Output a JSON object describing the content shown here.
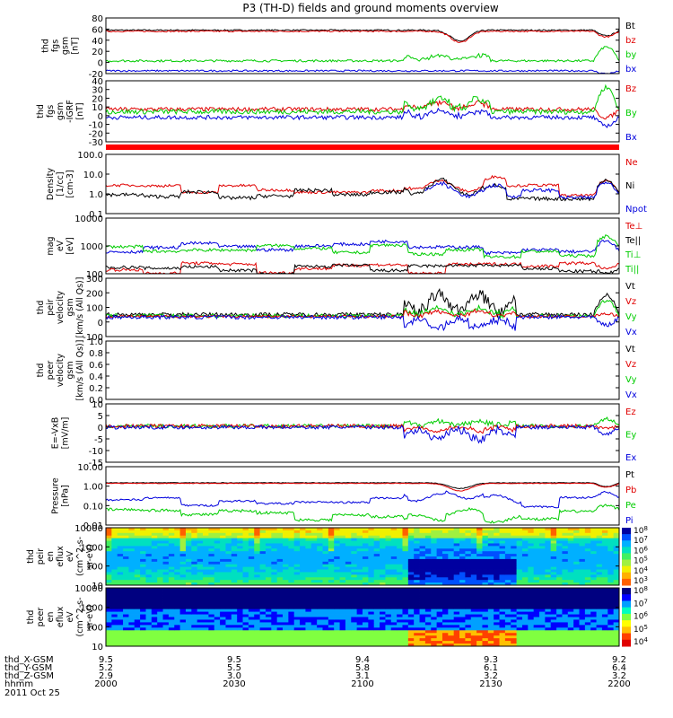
{
  "title": "P3 (TH-D) fields and ground moments overview",
  "colors": {
    "black": "#000000",
    "red": "#e00000",
    "green": "#00cc00",
    "blue": "#0000dd"
  },
  "chart_data": {
    "type": "line",
    "x_ticks": [
      "2000",
      "2030",
      "2100",
      "2130",
      "2200"
    ],
    "x_label": "hhmm",
    "date": "2011 Oct 25",
    "ephemeris": [
      {
        "label": "thd_X-GSM",
        "values": [
          "9.5",
          "9.5",
          "9.4",
          "9.3",
          "9.2"
        ]
      },
      {
        "label": "thd_Y-GSM",
        "values": [
          "5.2",
          "5.5",
          "5.8",
          "6.1",
          "6.4"
        ]
      },
      {
        "label": "thd_Z-GSM",
        "values": [
          "2.9",
          "3.0",
          "3.1",
          "3.2",
          "3.2"
        ]
      }
    ],
    "panels": [
      {
        "ylabel": [
          "thd",
          "fgs",
          "gsm",
          "[nT]"
        ],
        "y_ticks": [
          "80",
          "60",
          "40",
          "20",
          "0",
          "-20"
        ],
        "scale": "linear",
        "ylim": [
          -20,
          80
        ],
        "legend": [
          {
            "t": "Bt",
            "c": "black"
          },
          {
            "t": "bz",
            "c": "red"
          },
          {
            "t": "by",
            "c": "green"
          },
          {
            "t": "bx",
            "c": "blue"
          }
        ],
        "series": [
          {
            "color": "black",
            "base": 58,
            "noise": 1.2,
            "dip": {
              "at": 0.69,
              "w": 0.025,
              "amp": -20
            },
            "endfx": -10
          },
          {
            "color": "red",
            "base": 56,
            "noise": 1.2,
            "dip": {
              "at": 0.69,
              "w": 0.025,
              "amp": -20
            },
            "endfx": -10
          },
          {
            "color": "green",
            "base": 3,
            "noise": 2,
            "burst": {
              "from": 0.58,
              "to": 0.75,
              "amp": 10
            },
            "endfx": 25
          },
          {
            "color": "blue",
            "base": -15,
            "noise": 1.5,
            "endfx": -5
          }
        ]
      },
      {
        "ylabel": [
          "thd",
          "fgs",
          "gsm",
          "-IGRF",
          "[nT]"
        ],
        "y_ticks": [
          "40",
          "30",
          "20",
          "10",
          "0",
          "-10",
          "-20",
          "-30"
        ],
        "scale": "linear",
        "ylim": [
          -35,
          40
        ],
        "legend": [
          {
            "t": "Bz",
            "c": "red"
          },
          {
            "t": "By",
            "c": "green"
          },
          {
            "t": "Bx",
            "c": "blue"
          }
        ],
        "series": [
          {
            "color": "red",
            "base": 5,
            "noise": 2.5,
            "burst": {
              "from": 0.58,
              "to": 0.75,
              "amp": 8
            },
            "endfx": -10
          },
          {
            "color": "green",
            "base": 2,
            "noise": 3,
            "burst": {
              "from": 0.58,
              "to": 0.75,
              "amp": 15
            },
            "endfx": 30
          },
          {
            "color": "blue",
            "base": -5,
            "noise": 2.5,
            "burst": {
              "from": 0.58,
              "to": 0.75,
              "amp": 8
            },
            "endfx": -10
          }
        ]
      },
      {
        "ylabel": [
          "Density",
          "[1/cc]",
          "[cm-3]"
        ],
        "y_ticks": [
          "100.0",
          "10.0",
          "1.0",
          "0.1"
        ],
        "scale": "log",
        "ylim": [
          0.1,
          200
        ],
        "legend": [
          {
            "t": "Ne",
            "c": "red"
          },
          {
            "t": "Ni",
            "c": "black"
          },
          {
            "t": "Npot",
            "c": "blue"
          }
        ],
        "series": [
          {
            "color": "red",
            "base": 2.0,
            "noise": 0.15,
            "steps": true,
            "burst": {
              "from": 0.58,
              "to": 0.78,
              "amp": 0.5
            },
            "endfx": 0.6
          },
          {
            "color": "black",
            "base": 1.0,
            "noise": 0.2,
            "steps": true,
            "burst": {
              "from": 0.58,
              "to": 0.78,
              "amp": 0.8
            },
            "endfx": 0.8
          },
          {
            "color": "blue",
            "base": 1.2,
            "noise": 0.2,
            "steps": true,
            "from": 0.62,
            "burst": {
              "from": 0.58,
              "to": 0.78,
              "amp": 0.6
            },
            "endfx": 0.7
          }
        ]
      },
      {
        "ylabel": [
          "mag",
          "eV",
          "[eV]"
        ],
        "y_ticks": [
          "10000",
          "1000",
          "100"
        ],
        "scale": "log",
        "ylim": [
          40,
          20000
        ],
        "legend": [
          {
            "t": "Te⊥",
            "c": "red"
          },
          {
            "t": "Te||",
            "c": "black"
          },
          {
            "t": "Ti⊥",
            "c": "green"
          },
          {
            "t": "Ti||",
            "c": "green"
          }
        ],
        "series": [
          {
            "color": "blue",
            "base": 800,
            "noise": 0.15,
            "steps": true,
            "stepdir": 1,
            "endfx": 0.5
          },
          {
            "color": "green",
            "base": 500,
            "noise": 0.15,
            "steps": true,
            "stepdir": 1,
            "endfx": 0.5
          },
          {
            "color": "red",
            "base": 80,
            "noise": 0.15,
            "steps": true,
            "stepdir": -1,
            "endfx": -0.3
          },
          {
            "color": "black",
            "base": 60,
            "noise": 0.15,
            "steps": true,
            "stepdir": -1,
            "endfx": -0.3
          }
        ]
      },
      {
        "ylabel": [
          "thd",
          "peir",
          "velocity",
          "gsm",
          "[km/s (All Qs)]"
        ],
        "y_ticks": [
          "300",
          "200",
          "100",
          "0",
          "-100"
        ],
        "scale": "linear",
        "ylim": [
          -150,
          300
        ],
        "legend": [
          {
            "t": "Vt",
            "c": "black"
          },
          {
            "t": "Vz",
            "c": "red"
          },
          {
            "t": "Vy",
            "c": "green"
          },
          {
            "t": "Vx",
            "c": "blue"
          }
        ],
        "series": [
          {
            "color": "black",
            "base": 20,
            "noise": 15,
            "burst": {
              "from": 0.58,
              "to": 0.8,
              "amp": 150
            },
            "endfx": 150
          },
          {
            "color": "green",
            "base": 10,
            "noise": 15,
            "burst": {
              "from": 0.58,
              "to": 0.8,
              "amp": 60
            },
            "endfx": 120
          },
          {
            "color": "red",
            "base": 5,
            "noise": 10,
            "burst": {
              "from": 0.58,
              "to": 0.8,
              "amp": 40
            },
            "endfx": 20
          },
          {
            "color": "blue",
            "base": 0,
            "noise": 15,
            "burst": {
              "from": 0.58,
              "to": 0.8,
              "amp": -80
            },
            "endfx": -60
          }
        ]
      },
      {
        "ylabel": [
          "thd",
          "peer",
          "velocity",
          "gsm",
          "[km/s (All Qs)]"
        ],
        "y_ticks": [
          "1.0",
          "0.8",
          "0.6",
          "0.4",
          "0.2",
          "0.0"
        ],
        "scale": "linear",
        "ylim": [
          0,
          1
        ],
        "legend": [
          {
            "t": "Vt",
            "c": "black"
          },
          {
            "t": "Vz",
            "c": "red"
          },
          {
            "t": "Vy",
            "c": "green"
          },
          {
            "t": "Vx",
            "c": "blue"
          }
        ],
        "series": []
      },
      {
        "ylabel": [
          "E=-VxB",
          "[mV/m]"
        ],
        "y_ticks": [
          "10",
          "5",
          "0",
          "-5",
          "-10",
          "-15"
        ],
        "scale": "linear",
        "ylim": [
          -15,
          10
        ],
        "legend": [
          {
            "t": "Ez",
            "c": "red"
          },
          {
            "t": "Ey",
            "c": "green"
          },
          {
            "t": "Ex",
            "c": "blue"
          }
        ],
        "series": [
          {
            "color": "green",
            "base": 0.5,
            "noise": 0.8,
            "burst": {
              "from": 0.58,
              "to": 0.8,
              "amp": 2
            },
            "endfx": 3
          },
          {
            "color": "red",
            "base": 0.5,
            "noise": 0.8,
            "burst": {
              "from": 0.58,
              "to": 0.8,
              "amp": -2
            },
            "endfx": -1
          },
          {
            "color": "blue",
            "base": 0,
            "noise": 0.8,
            "burst": {
              "from": 0.58,
              "to": 0.8,
              "amp": -5
            },
            "endfx": -3
          }
        ]
      },
      {
        "ylabel": [
          "Pressure",
          "[nPa]"
        ],
        "y_ticks": [
          "10.00",
          "1.00",
          "0.10",
          "0.01"
        ],
        "scale": "log",
        "ylim": [
          0.008,
          10
        ],
        "legend": [
          {
            "t": "Pt",
            "c": "black"
          },
          {
            "t": "Pb",
            "c": "red"
          },
          {
            "t": "Pe",
            "c": "green"
          },
          {
            "t": "Pi",
            "c": "blue"
          }
        ],
        "series": [
          {
            "color": "black",
            "base": 1.4,
            "noise": 0.03,
            "dip": {
              "at": 0.69,
              "w": 0.03,
              "amp": -0.3
            },
            "endfx": -0.2
          },
          {
            "color": "red",
            "base": 1.3,
            "noise": 0.03,
            "dip": {
              "at": 0.69,
              "w": 0.03,
              "amp": -0.4
            },
            "endfx": -0.2
          },
          {
            "color": "blue",
            "base": 0.13,
            "noise": 0.1,
            "steps": true,
            "burst": {
              "from": 0.58,
              "to": 0.8,
              "amp": 0.4
            },
            "endfx": 0.3
          },
          {
            "color": "green",
            "base": 0.03,
            "noise": 0.15,
            "steps": true,
            "burst": {
              "from": 0.58,
              "to": 0.8,
              "amp": -0.3
            },
            "endfx": 0.2
          }
        ]
      },
      {
        "ylabel": [
          "thd",
          "peir",
          "en",
          "eflux",
          "eV",
          "(cm^2-s-",
          "sr-eV)"
        ],
        "y_ticks": [
          "10000",
          "1000",
          "100",
          "10"
        ],
        "scale": "log",
        "ylim": [
          8,
          20000
        ],
        "spectrogram": "ion",
        "legend": []
      },
      {
        "ylabel": [
          "thd",
          "peer",
          "en",
          "eflux",
          "eV",
          "(cm^2-s-",
          "sr-eV)"
        ],
        "y_ticks": [
          "10000",
          "1000",
          "100",
          "10"
        ],
        "scale": "log",
        "ylim": [
          8,
          20000
        ],
        "spectrogram": "electron",
        "legend": []
      }
    ],
    "colorbars": [
      {
        "ticks": [
          "10^8",
          "10^7",
          "10^6",
          "10^5",
          "10^4",
          "10^3"
        ]
      },
      {
        "ticks": [
          "10^8",
          "10^7",
          "10^6",
          "10^5",
          "10^4"
        ]
      }
    ]
  }
}
